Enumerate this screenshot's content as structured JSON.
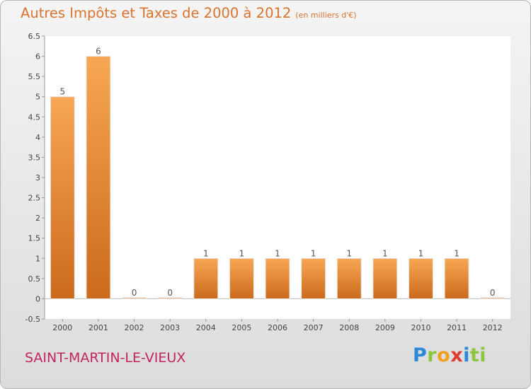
{
  "header": {
    "title": "Autres Impôts et Taxes de 2000 à 2012",
    "unit": "(en milliers d'€)"
  },
  "footer": {
    "commune": "SAINT-MARTIN-LE-VIEUX",
    "logo_text": [
      "P",
      "r",
      "o",
      "x",
      "i",
      "ti"
    ]
  },
  "colors": {
    "title": "#d8742f",
    "commune": "#c1245f",
    "bar_light": "#f7a754",
    "bar_dark": "#cc6a1c"
  },
  "chart_data": {
    "type": "bar",
    "categories": [
      "2000",
      "2001",
      "2002",
      "2003",
      "2004",
      "2005",
      "2006",
      "2007",
      "2008",
      "2009",
      "2010",
      "2011",
      "2012"
    ],
    "values": [
      5,
      6,
      0,
      0,
      1,
      1,
      1,
      1,
      1,
      1,
      1,
      1,
      0
    ],
    "data_labels": [
      "5",
      "6",
      "0",
      "0",
      "1",
      "1",
      "1",
      "1",
      "1",
      "1",
      "1",
      "1",
      "0"
    ],
    "title": "Autres Impôts et Taxes de 2000 à 2012",
    "unit": "(en milliers d'€)",
    "xlabel": "",
    "ylabel": "",
    "ylim": [
      -0.5,
      6.5
    ],
    "yticks": [
      "-0.5",
      "0",
      "0.5",
      "1",
      "1.5",
      "2",
      "2.5",
      "3",
      "3.5",
      "4",
      "4.5",
      "5",
      "5.5",
      "6",
      "6.5"
    ],
    "grid": false
  }
}
